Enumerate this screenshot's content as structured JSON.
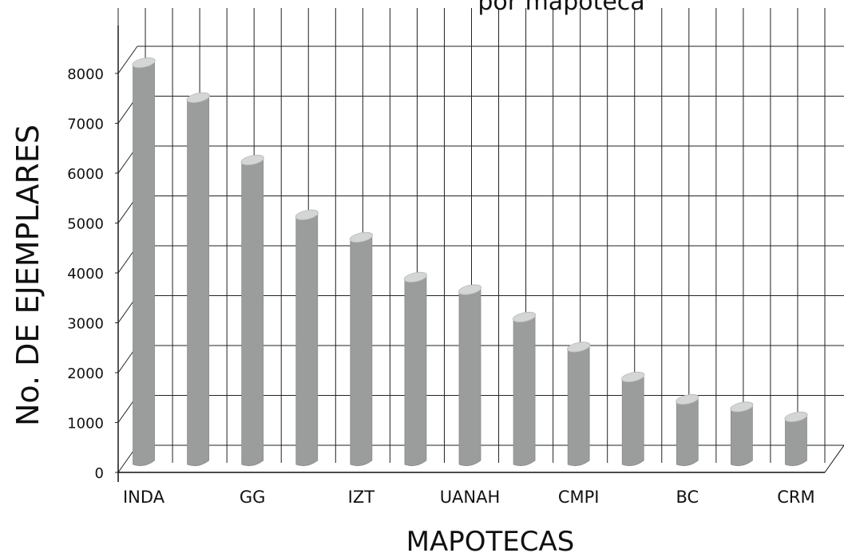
{
  "chart_data": {
    "type": "bar",
    "title": "por mapoteca",
    "xlabel": "MAPOTECAS",
    "ylabel": "No. DE EJEMPLARES",
    "ylim": [
      0,
      8000
    ],
    "yticks": [
      "0",
      "1000",
      "2000",
      "3000",
      "4000",
      "5000",
      "6000",
      "7000",
      "8000"
    ],
    "grid": true,
    "categories": [
      "INDA",
      "",
      "GG",
      "",
      "IZT",
      "",
      "UANAH",
      "",
      "CMPI",
      "",
      "BC",
      "",
      "CRM"
    ],
    "values": [
      8150,
      7450,
      6200,
      5100,
      4650,
      3850,
      3600,
      3050,
      2450,
      1850,
      1400,
      1250,
      1050
    ],
    "bar_color": "#9b9d9c",
    "bar_top_color": "#d4d5d5"
  }
}
